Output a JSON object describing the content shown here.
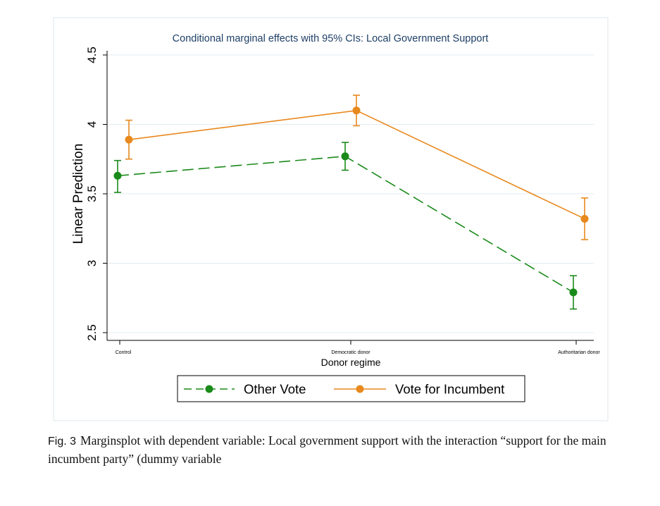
{
  "chart_data": {
    "type": "line",
    "title": "Conditional marginal effects with 95% CIs: Local Government Support",
    "xlabel": "Donor regime",
    "ylabel": "Linear Prediction",
    "categories": [
      "Control",
      "Democratic donor",
      "Authoritarian donor"
    ],
    "ylim": [
      2.5,
      4.5
    ],
    "yticks": [
      "2.5",
      "3",
      "3.5",
      "4",
      "4.5"
    ],
    "grid": true,
    "legend_position": "bottom",
    "series": [
      {
        "name": "Other Vote",
        "color": "#1a8a1a",
        "dash": true,
        "values": [
          3.63,
          3.77,
          2.79
        ],
        "ci_low": [
          3.51,
          3.67,
          2.67
        ],
        "ci_high": [
          3.74,
          3.87,
          2.91
        ]
      },
      {
        "name": "Vote for Incumbent",
        "color": "#e8891e",
        "dash": false,
        "values": [
          3.89,
          4.1,
          3.32
        ],
        "ci_low": [
          3.75,
          3.99,
          3.17
        ],
        "ci_high": [
          4.03,
          4.21,
          3.47
        ]
      }
    ]
  },
  "caption": {
    "label": "Fig. 3",
    "text": "Marginsplot with dependent variable: Local government support with the interaction “support for the main incumbent party” (dummy variable"
  }
}
